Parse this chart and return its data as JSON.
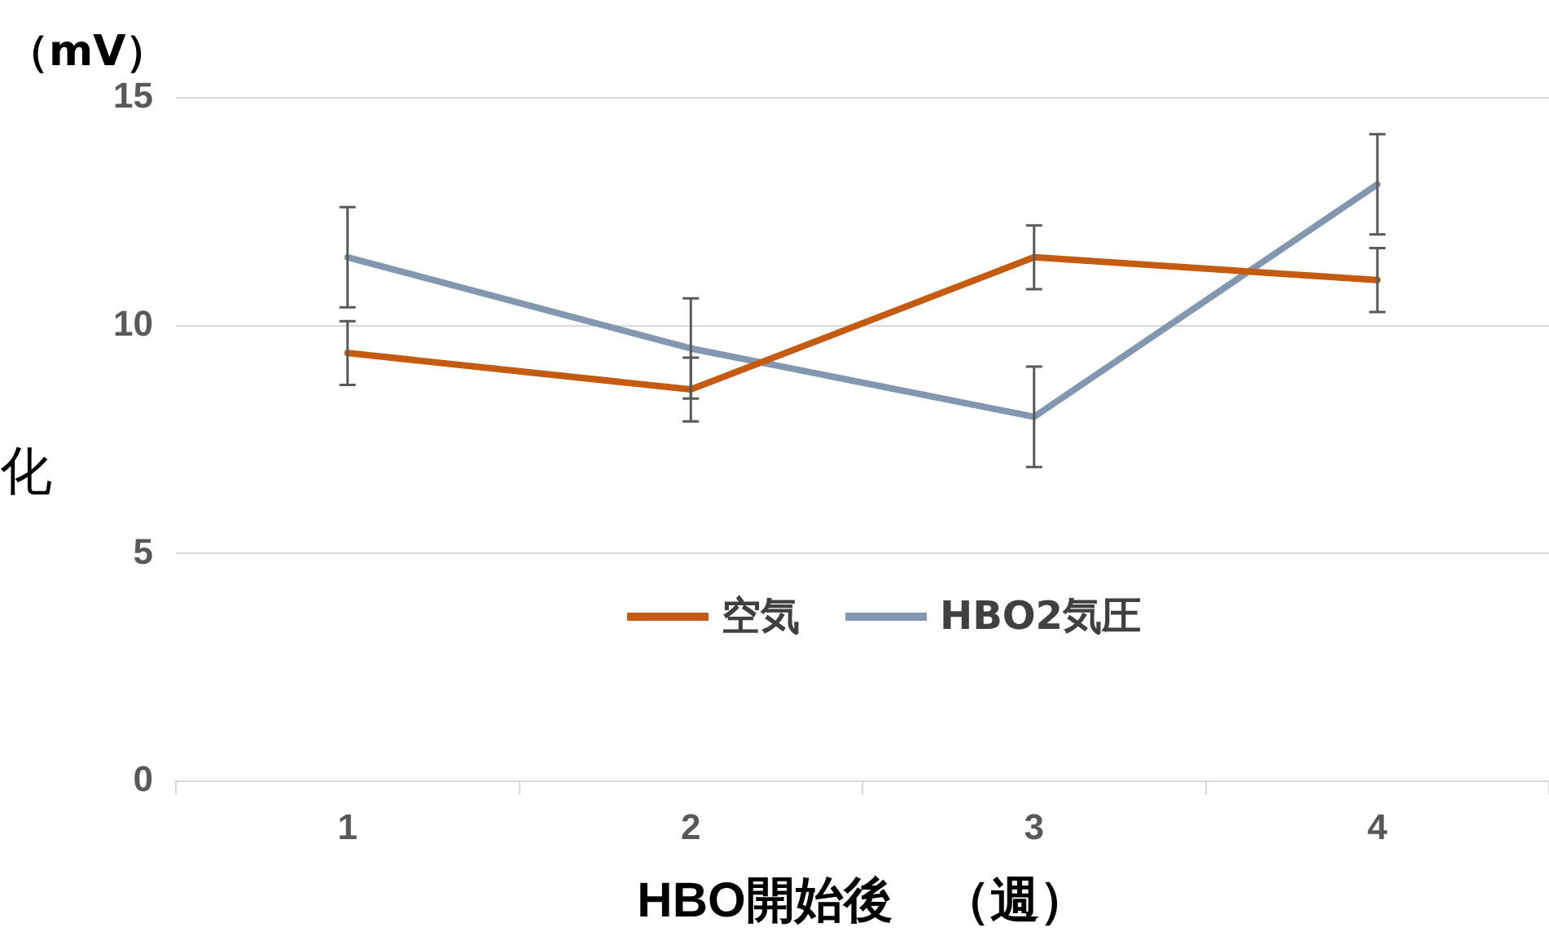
{
  "chart_data": {
    "type": "line",
    "xlabel": "HBO開始後　（週）",
    "ylabel": "化",
    "annotations": [
      "（mV）"
    ],
    "categories": [
      "1",
      "2",
      "3",
      "4"
    ],
    "series": [
      {
        "name": "空気",
        "color": "#c55a11",
        "values": [
          9.4,
          8.6,
          11.5,
          11.0
        ],
        "errors": [
          0.7,
          0.7,
          0.7,
          0.7
        ]
      },
      {
        "name": "HBO2気圧",
        "color": "#8497b0",
        "values": [
          11.5,
          9.5,
          8.0,
          13.1
        ],
        "errors": [
          1.1,
          1.1,
          1.1,
          1.1
        ]
      }
    ],
    "ylim": [
      0,
      15
    ],
    "yticks": [
      0,
      5,
      10,
      15
    ],
    "grid": "y",
    "legend": "center",
    "marker": "none",
    "line_style": "solid"
  }
}
